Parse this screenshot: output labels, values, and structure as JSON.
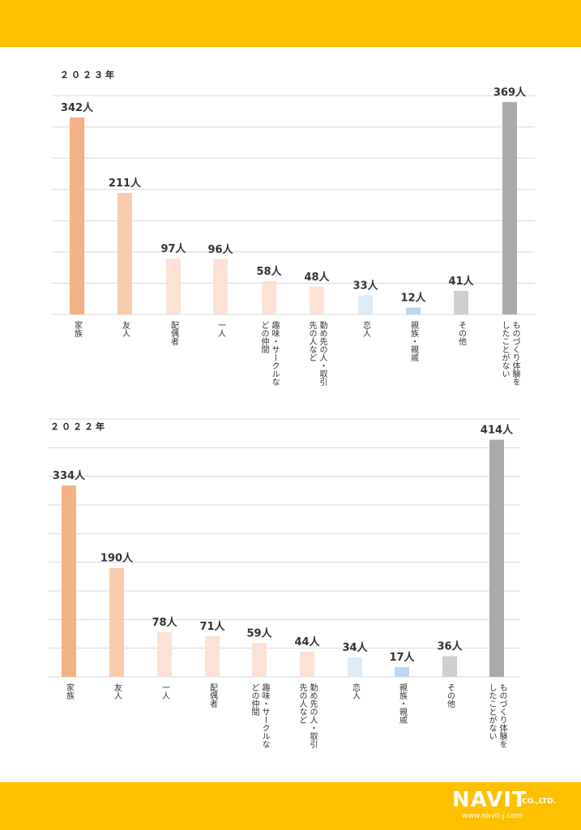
{
  "colors": {
    "band": "#FFC000",
    "grid": "#d9d9d9",
    "text": "#333333"
  },
  "chart_data": [
    {
      "type": "bar",
      "title": "２０２３年",
      "unit": "人",
      "ylim": [
        0,
        380
      ],
      "categories": [
        [
          "家族"
        ],
        [
          "友人"
        ],
        [
          "配偶者"
        ],
        [
          "一人"
        ],
        [
          "趣味・サークルな",
          "どの仲間"
        ],
        [
          "勤め先の人・取引",
          "先の人など"
        ],
        [
          "恋人"
        ],
        [
          "親族・親戚"
        ],
        [
          "その他"
        ],
        [
          "ものづくり体験を",
          "したことがない"
        ]
      ],
      "values": [
        342,
        211,
        97,
        96,
        58,
        48,
        33,
        12,
        41,
        369
      ],
      "value_labels": [
        "342人",
        "211人",
        "97人",
        "96人",
        "58人",
        "48人",
        "33人",
        "12人",
        "41人",
        "369人"
      ],
      "bar_colors": [
        "#F4B183",
        "#F8CBAD",
        "#FBE2D5",
        "#FBE2D5",
        "#FBE2D5",
        "#FBE2D5",
        "#DDEBF7",
        "#BDD7EE",
        "#D0CECE",
        "#AEAAAA"
      ]
    },
    {
      "type": "bar",
      "title": "２０２２年",
      "unit": "人",
      "ylim": [
        0,
        450
      ],
      "categories": [
        [
          "家族"
        ],
        [
          "友人"
        ],
        [
          "一人"
        ],
        [
          "配偶者"
        ],
        [
          "趣味・サークルな",
          "どの仲間"
        ],
        [
          "勤め先の人・取引",
          "先の人など"
        ],
        [
          "恋人"
        ],
        [
          "親族・親戚"
        ],
        [
          "その他"
        ],
        [
          "ものづくり体験を",
          "したことがない"
        ]
      ],
      "values": [
        334,
        190,
        78,
        71,
        59,
        44,
        34,
        17,
        36,
        414
      ],
      "value_labels": [
        "334人",
        "190人",
        "78人",
        "71人",
        "59人",
        "44人",
        "34人",
        "17人",
        "36人",
        "414人"
      ],
      "bar_colors": [
        "#F4B183",
        "#F8CBAD",
        "#FBE2D5",
        "#FBE2D5",
        "#FBE2D5",
        "#FBE2D5",
        "#DDEBF7",
        "#BDD7EE",
        "#D0CECE",
        "#AEAAAA"
      ]
    }
  ],
  "logo": {
    "name": "NAVIT",
    "suffix": "CO.,LTD.",
    "url": "www.navit-j.com"
  }
}
